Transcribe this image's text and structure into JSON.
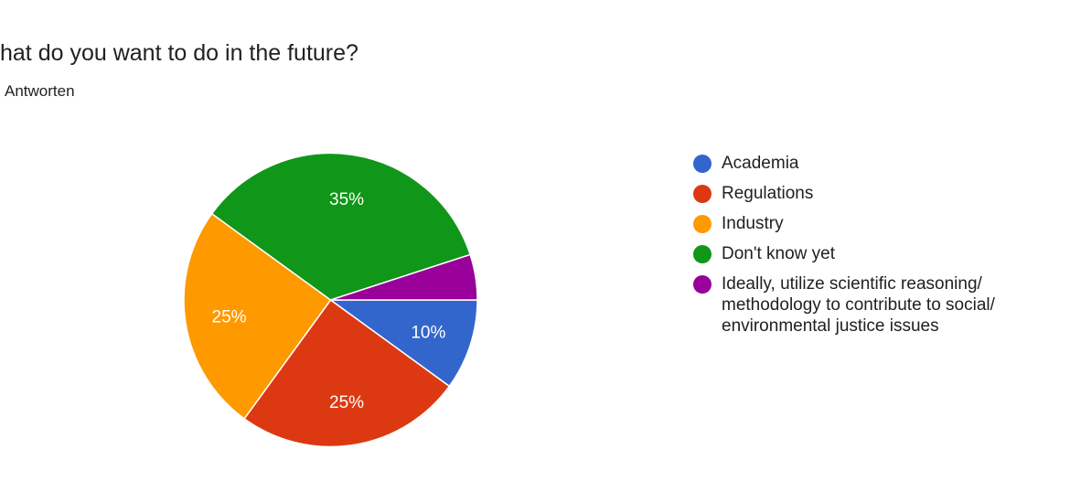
{
  "title": "hat do you want to do in the future?",
  "subtitle": "Antworten",
  "chart_data": {
    "type": "pie",
    "title": "hat do you want to do in the future?",
    "categories": [
      "Academia",
      "Regulations",
      "Industry",
      "Don't know yet",
      "Ideally, utilize scientific reasoning/ methodology to contribute to social/ environmental justice issues"
    ],
    "values": [
      10,
      25,
      25,
      35,
      5
    ],
    "data_labels": [
      "10%",
      "25%",
      "25%",
      "35%",
      ""
    ],
    "colors": [
      "#3366cc",
      "#dc3912",
      "#ff9900",
      "#109618",
      "#990099"
    ],
    "legend_position": "right"
  }
}
